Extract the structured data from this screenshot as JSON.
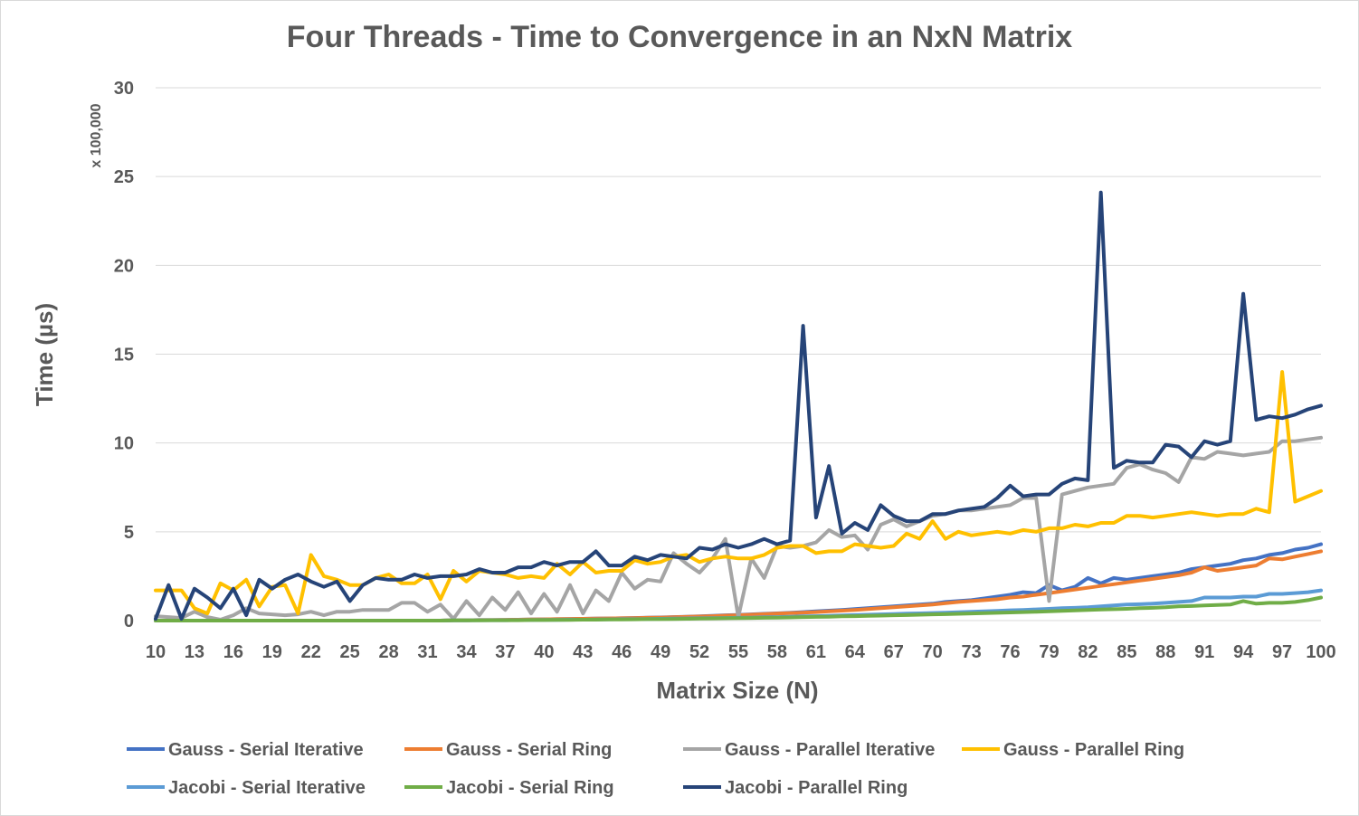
{
  "chart_data": {
    "type": "line",
    "title": "Four Threads - Time to Convergence in an NxN Matrix",
    "xlabel": "Matrix Size (N)",
    "ylabel": "Time (µs)",
    "y_unit_label": "x 100,000",
    "ylim": [
      0,
      30
    ],
    "yticks": [
      0,
      5,
      10,
      15,
      20,
      25,
      30
    ],
    "xlim": [
      10,
      100
    ],
    "xticks": [
      "10",
      "13",
      "16",
      "19",
      "22",
      "25",
      "28",
      "31",
      "34",
      "37",
      "40",
      "43",
      "46",
      "49",
      "52",
      "55",
      "58",
      "61",
      "64",
      "67",
      "70",
      "73",
      "76",
      "79",
      "82",
      "85",
      "88",
      "91",
      "94",
      "97",
      "100"
    ],
    "grid": "horizontal",
    "legend_position": "bottom",
    "x": [
      10,
      11,
      12,
      13,
      14,
      15,
      16,
      17,
      18,
      19,
      20,
      21,
      22,
      23,
      24,
      25,
      26,
      27,
      28,
      29,
      30,
      31,
      32,
      33,
      34,
      35,
      36,
      37,
      38,
      39,
      40,
      41,
      42,
      43,
      44,
      45,
      46,
      47,
      48,
      49,
      50,
      51,
      52,
      53,
      54,
      55,
      56,
      57,
      58,
      59,
      60,
      61,
      62,
      63,
      64,
      65,
      66,
      67,
      68,
      69,
      70,
      71,
      72,
      73,
      74,
      75,
      76,
      77,
      78,
      79,
      80,
      81,
      82,
      83,
      84,
      85,
      86,
      87,
      88,
      89,
      90,
      91,
      92,
      93,
      94,
      95,
      96,
      97,
      98,
      99,
      100
    ],
    "series": [
      {
        "name": "Gauss - Serial Iterative",
        "color": "#4472C4",
        "values": [
          0,
          0,
          0,
          0,
          0,
          0,
          0,
          0,
          0,
          0,
          0,
          0,
          0,
          0,
          0,
          0,
          0,
          0,
          0,
          0,
          0,
          0,
          0,
          0.02,
          0.02,
          0.03,
          0.03,
          0.04,
          0.05,
          0.06,
          0.07,
          0.08,
          0.09,
          0.1,
          0.11,
          0.12,
          0.13,
          0.15,
          0.17,
          0.18,
          0.2,
          0.22,
          0.24,
          0.27,
          0.3,
          0.32,
          0.35,
          0.38,
          0.41,
          0.44,
          0.48,
          0.52,
          0.56,
          0.6,
          0.65,
          0.7,
          0.75,
          0.8,
          0.85,
          0.9,
          0.95,
          1.05,
          1.1,
          1.15,
          1.25,
          1.35,
          1.45,
          1.6,
          1.55,
          2.0,
          1.7,
          1.9,
          2.4,
          2.1,
          2.4,
          2.3,
          2.4,
          2.5,
          2.6,
          2.7,
          2.9,
          3.0,
          3.1,
          3.2,
          3.4,
          3.5,
          3.7,
          3.8,
          4.0,
          4.1,
          4.3
        ]
      },
      {
        "name": "Gauss - Serial Ring",
        "color": "#ED7D31",
        "values": [
          0,
          0,
          0,
          0,
          0,
          0,
          0,
          0,
          0,
          0,
          0,
          0,
          0,
          0,
          0,
          0,
          0,
          0,
          0,
          0,
          0,
          0,
          0,
          0.02,
          0.02,
          0.03,
          0.03,
          0.04,
          0.05,
          0.06,
          0.07,
          0.08,
          0.09,
          0.1,
          0.11,
          0.12,
          0.13,
          0.14,
          0.16,
          0.17,
          0.19,
          0.21,
          0.23,
          0.25,
          0.28,
          0.3,
          0.33,
          0.36,
          0.39,
          0.42,
          0.45,
          0.48,
          0.52,
          0.56,
          0.6,
          0.65,
          0.7,
          0.75,
          0.8,
          0.85,
          0.9,
          0.98,
          1.05,
          1.1,
          1.15,
          1.2,
          1.3,
          1.35,
          1.45,
          1.55,
          1.65,
          1.75,
          1.85,
          1.95,
          2.05,
          2.15,
          2.25,
          2.35,
          2.45,
          2.55,
          2.7,
          3.0,
          2.8,
          2.9,
          3.0,
          3.1,
          3.5,
          3.45,
          3.6,
          3.75,
          3.9
        ]
      },
      {
        "name": "Gauss - Parallel Iterative",
        "color": "#A5A5A5",
        "values": [
          0.25,
          0.2,
          0.15,
          0.5,
          0.2,
          0.05,
          0.3,
          0.7,
          0.4,
          0.35,
          0.3,
          0.35,
          0.5,
          0.3,
          0.5,
          0.5,
          0.6,
          0.6,
          0.6,
          1.0,
          1.0,
          0.5,
          0.9,
          0.1,
          1.1,
          0.3,
          1.3,
          0.6,
          1.6,
          0.4,
          1.5,
          0.5,
          2.0,
          0.4,
          1.7,
          1.1,
          2.7,
          1.8,
          2.3,
          2.2,
          3.8,
          3.2,
          2.7,
          3.5,
          4.6,
          0.2,
          3.5,
          2.4,
          4.2,
          4.1,
          4.2,
          4.4,
          5.1,
          4.7,
          4.8,
          4.0,
          5.4,
          5.7,
          5.3,
          5.6,
          5.9,
          6.0,
          6.2,
          6.2,
          6.3,
          6.4,
          6.5,
          6.9,
          6.9,
          1.1,
          7.1,
          7.3,
          7.5,
          7.6,
          7.7,
          8.6,
          8.8,
          8.5,
          8.3,
          7.8,
          9.2,
          9.1,
          9.5,
          9.4,
          9.3,
          9.4,
          9.5,
          10.1,
          10.1,
          10.2,
          10.3
        ]
      },
      {
        "name": "Gauss - Parallel Ring",
        "color": "#FFC000",
        "values": [
          1.7,
          1.7,
          1.7,
          0.7,
          0.4,
          2.1,
          1.7,
          2.3,
          0.8,
          1.9,
          2.0,
          0.4,
          3.7,
          2.5,
          2.3,
          2.0,
          2.0,
          2.4,
          2.6,
          2.1,
          2.1,
          2.6,
          1.2,
          2.8,
          2.2,
          2.8,
          2.7,
          2.6,
          2.4,
          2.5,
          2.4,
          3.2,
          2.6,
          3.3,
          2.7,
          2.8,
          2.8,
          3.4,
          3.2,
          3.3,
          3.6,
          3.7,
          3.3,
          3.5,
          3.6,
          3.5,
          3.5,
          3.7,
          4.1,
          4.2,
          4.2,
          3.8,
          3.9,
          3.9,
          4.3,
          4.2,
          4.1,
          4.2,
          4.9,
          4.6,
          5.6,
          4.6,
          5.0,
          4.8,
          4.9,
          5.0,
          4.9,
          5.1,
          5.0,
          5.2,
          5.2,
          5.4,
          5.3,
          5.5,
          5.5,
          5.9,
          5.9,
          5.8,
          5.9,
          6.0,
          6.1,
          6.0,
          5.9,
          6.0,
          6.0,
          6.3,
          6.1,
          14.0,
          6.7,
          7.0,
          7.3
        ]
      },
      {
        "name": "Jacobi - Serial Iterative",
        "color": "#5B9BD5",
        "values": [
          0,
          0,
          0,
          0,
          0,
          0,
          0,
          0,
          0,
          0,
          0,
          0,
          0,
          0,
          0,
          0,
          0,
          0,
          0,
          0,
          0,
          0,
          0,
          0.01,
          0.01,
          0.02,
          0.02,
          0.02,
          0.03,
          0.03,
          0.04,
          0.04,
          0.05,
          0.05,
          0.06,
          0.07,
          0.08,
          0.08,
          0.09,
          0.1,
          0.11,
          0.12,
          0.13,
          0.14,
          0.15,
          0.16,
          0.17,
          0.19,
          0.2,
          0.22,
          0.24,
          0.25,
          0.27,
          0.29,
          0.31,
          0.33,
          0.35,
          0.37,
          0.39,
          0.41,
          0.43,
          0.45,
          0.47,
          0.5,
          0.52,
          0.55,
          0.58,
          0.6,
          0.63,
          0.66,
          0.7,
          0.72,
          0.75,
          0.8,
          0.85,
          0.9,
          0.92,
          0.95,
          1.0,
          1.05,
          1.1,
          1.3,
          1.3,
          1.3,
          1.35,
          1.35,
          1.5,
          1.5,
          1.55,
          1.6,
          1.7
        ]
      },
      {
        "name": "Jacobi - Serial Ring",
        "color": "#70AD47",
        "values": [
          0,
          0,
          0,
          0,
          0,
          0,
          0,
          0,
          0,
          0,
          0,
          0,
          0,
          0,
          0,
          0,
          0,
          0,
          0,
          0,
          0,
          0,
          0,
          0.01,
          0.01,
          0.01,
          0.02,
          0.02,
          0.02,
          0.03,
          0.03,
          0.04,
          0.04,
          0.05,
          0.05,
          0.06,
          0.06,
          0.07,
          0.08,
          0.08,
          0.09,
          0.1,
          0.11,
          0.12,
          0.13,
          0.14,
          0.15,
          0.16,
          0.17,
          0.18,
          0.2,
          0.21,
          0.22,
          0.24,
          0.25,
          0.27,
          0.28,
          0.3,
          0.31,
          0.33,
          0.35,
          0.36,
          0.38,
          0.4,
          0.42,
          0.44,
          0.46,
          0.48,
          0.5,
          0.52,
          0.55,
          0.57,
          0.6,
          0.62,
          0.64,
          0.66,
          0.7,
          0.72,
          0.75,
          0.8,
          0.82,
          0.85,
          0.88,
          0.9,
          1.1,
          0.95,
          1.0,
          1.0,
          1.05,
          1.15,
          1.3
        ]
      },
      {
        "name": "Jacobi - Parallel Ring",
        "color": "#264478",
        "values": [
          0.1,
          2.0,
          0.1,
          1.8,
          1.3,
          0.7,
          1.8,
          0.3,
          2.3,
          1.8,
          2.3,
          2.6,
          2.2,
          1.9,
          2.2,
          1.1,
          2.0,
          2.4,
          2.3,
          2.3,
          2.6,
          2.4,
          2.5,
          2.5,
          2.6,
          2.9,
          2.7,
          2.7,
          3.0,
          3.0,
          3.3,
          3.1,
          3.3,
          3.3,
          3.9,
          3.1,
          3.1,
          3.6,
          3.4,
          3.7,
          3.6,
          3.5,
          4.1,
          4.0,
          4.3,
          4.1,
          4.3,
          4.6,
          4.3,
          4.5,
          16.6,
          5.8,
          8.7,
          4.9,
          5.5,
          5.1,
          6.5,
          5.9,
          5.6,
          5.6,
          6.0,
          6.0,
          6.2,
          6.3,
          6.4,
          6.9,
          7.6,
          7.0,
          7.1,
          7.1,
          7.7,
          8.0,
          7.9,
          24.1,
          8.6,
          9.0,
          8.9,
          8.9,
          9.9,
          9.8,
          9.2,
          10.1,
          9.9,
          10.1,
          18.4,
          11.3,
          11.5,
          11.4,
          11.6,
          11.9,
          12.1
        ]
      }
    ]
  }
}
